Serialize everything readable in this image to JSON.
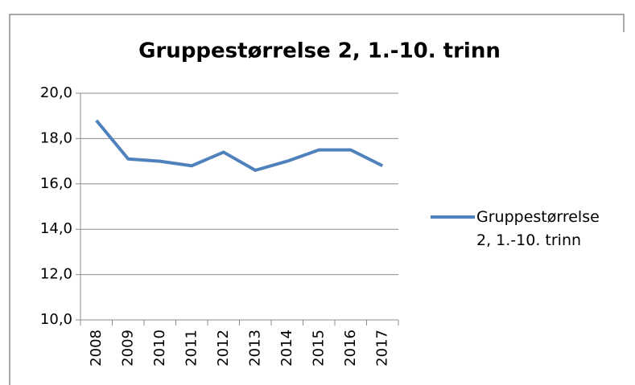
{
  "chart_data": {
    "type": "line",
    "title": "Gruppestørrelse 2, 1.-10. trinn",
    "categories": [
      "2008",
      "2009",
      "2010",
      "2011",
      "2012",
      "2013",
      "2014",
      "2015",
      "2016",
      "2017"
    ],
    "series": [
      {
        "name": "Gruppestørrelse 2, 1.-10. trinn",
        "color": "#4f81bd",
        "values": [
          18.8,
          17.1,
          17.0,
          16.8,
          17.4,
          16.6,
          17.0,
          17.5,
          17.5,
          16.8
        ]
      }
    ],
    "ylim": [
      10,
      20
    ],
    "yticks": [
      {
        "value": 10,
        "label": "10,0"
      },
      {
        "value": 12,
        "label": "12,0"
      },
      {
        "value": 14,
        "label": "14,0"
      },
      {
        "value": 16,
        "label": "16,0"
      },
      {
        "value": 18,
        "label": "18,0"
      },
      {
        "value": 20,
        "label": "20,0"
      }
    ],
    "grid": true,
    "legend": "right"
  }
}
